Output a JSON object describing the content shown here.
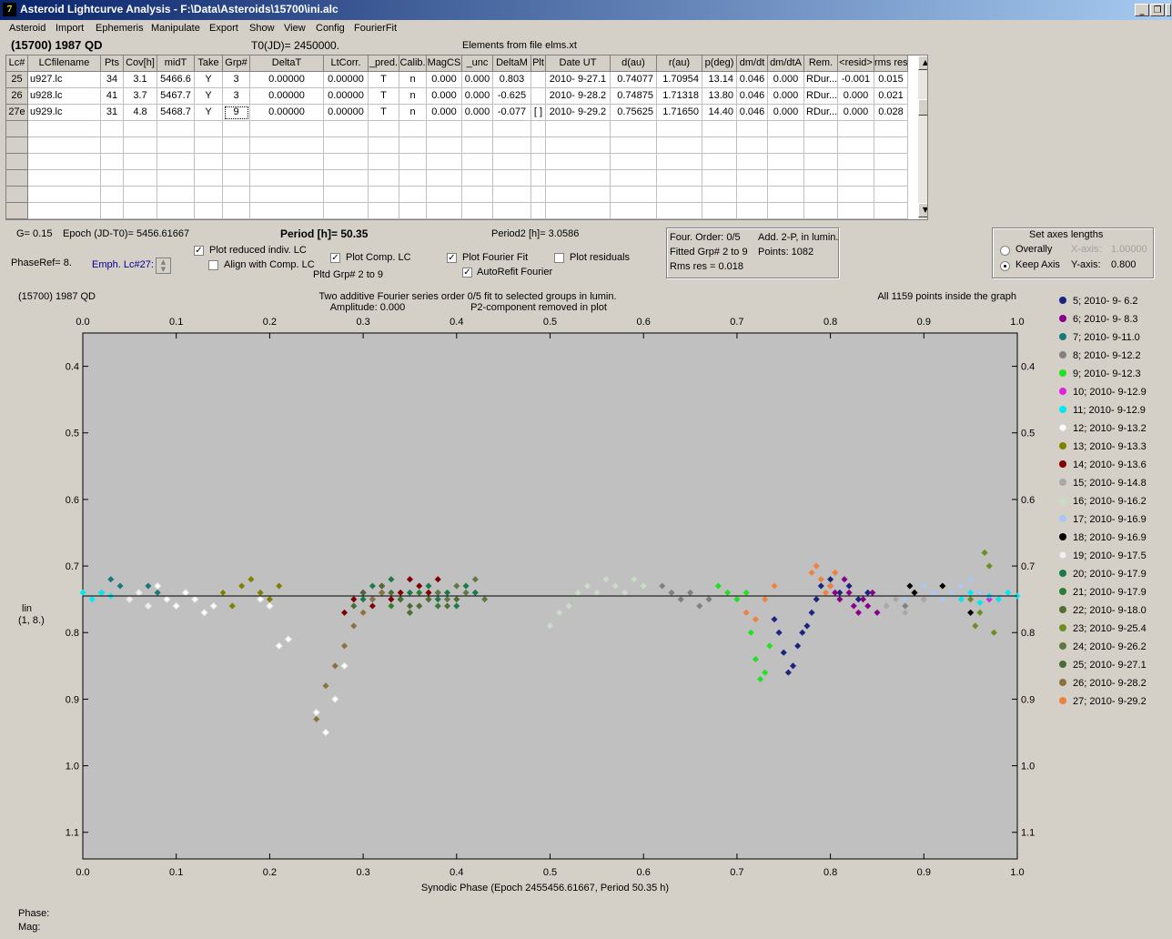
{
  "window": {
    "title": "Asteroid Lightcurve Analysis - F:\\Data\\Asteroids\\15700\\ini.alc",
    "icon": "app-icon"
  },
  "menu": [
    "Asteroid",
    "Import",
    "Ephemeris",
    "Manipulate",
    "Export",
    "Show",
    "View",
    "Config",
    "FourierFit"
  ],
  "info": {
    "object": "(15700) 1987 QD",
    "t0": "T0(JD)= 2450000.",
    "elements": "Elements from file elms.xt"
  },
  "table": {
    "headers": [
      "Lc#",
      "LCfilename",
      "Pts",
      "Cov[h]",
      "midT",
      "Take",
      "Grp#",
      "DeltaT",
      "LtCorr.",
      "_pred.",
      "Calib.",
      "MagCS",
      "_unc",
      "DeltaM",
      "Plt",
      "Date UT",
      "d(au)",
      "r(au)",
      "p(deg)",
      "dm/dt",
      "dm/dtA",
      "Rem.",
      "<resid>",
      "rms res"
    ],
    "rows": [
      [
        "25",
        "u927.lc",
        "34",
        "3.1",
        "5466.6",
        "Y",
        "3",
        "0.00000",
        "0.00000",
        "T",
        "n",
        "0.000",
        "0.000",
        "0.803",
        "",
        "2010- 9-27.1",
        "0.74077",
        "1.70954",
        "13.14",
        "0.046",
        "0.000",
        "RDur...",
        "-0.001",
        "0.015"
      ],
      [
        "26",
        "u928.lc",
        "41",
        "3.7",
        "5467.7",
        "Y",
        "3",
        "0.00000",
        "0.00000",
        "T",
        "n",
        "0.000",
        "0.000",
        "-0.625",
        "",
        "2010- 9-28.2",
        "0.74875",
        "1.71318",
        "13.80",
        "0.046",
        "0.000",
        "RDur...",
        "0.000",
        "0.021"
      ],
      [
        "27e",
        "u929.lc",
        "31",
        "4.8",
        "5468.7",
        "Y",
        "9",
        "0.00000",
        "0.00000",
        "T",
        "n",
        "0.000",
        "0.000",
        "-0.077",
        "[ ]",
        "2010- 9-29.2",
        "0.75625",
        "1.71650",
        "14.40",
        "0.046",
        "0.000",
        "RDur...",
        "0.000",
        "0.028"
      ]
    ],
    "empty_rows": 6
  },
  "controls": {
    "g": "G= 0.15",
    "epoch": "Epoch (JD-T0)= 5456.61667",
    "period": "Period [h]= 50.35",
    "period2": "Period2 [h]= 3.0586",
    "phaseref": "PhaseRef= 8.",
    "emph": "Emph. Lc#27:",
    "plot_reduced": "Plot reduced indiv. LC",
    "align": "Align with Comp. LC",
    "plot_comp": "Plot Comp. LC",
    "pltd_grp": "Pltd Grp#  2  to  9",
    "plot_fourier": "Plot Fourier Fit",
    "autorefit": "AutoRefit Fourier",
    "plot_residuals": "Plot residuals",
    "checked": {
      "plot_reduced": true,
      "align": false,
      "plot_comp": true,
      "plot_fourier": true,
      "autorefit": true,
      "plot_residuals": false
    }
  },
  "fourier_box": {
    "order": "Four. Order:  0/5",
    "add": "Add. 2-P, in lumin.",
    "fitted": "Fitted Grp# 2 to 9",
    "points": "Points: 1082",
    "rms": "Rms res     = 0.018"
  },
  "axes_box": {
    "title": "Set axes lengths",
    "overally": "Overally",
    "keep": "Keep Axis",
    "xaxis_label": "X-axis:",
    "xaxis_value": "1.00000",
    "yaxis_label": "Y-axis:",
    "yaxis_value": "0.800",
    "selected": "keep"
  },
  "plot": {
    "object": "(15700) 1987 QD",
    "subtitle1": "Two additive Fourier series order 0/5 fit to selected groups in lumin.",
    "subtitle2": "Amplitude: 0.000",
    "subtitle3": "P2-component removed in plot",
    "points_note": "All 1159 points inside the graph",
    "ylabel1": "lin",
    "ylabel2": "(1, 8.)",
    "xlabel": "Synodic Phase (Epoch 2455456.61667, Period 50.35 h)",
    "phase_label": "Phase:",
    "mag_label": "Mag:"
  },
  "chart_data": {
    "type": "scatter",
    "xlim": [
      0.0,
      1.0
    ],
    "ylim": [
      1.14,
      0.35
    ],
    "x_ticks": [
      "0.0",
      "0.1",
      "0.2",
      "0.3",
      "0.4",
      "0.5",
      "0.6",
      "0.7",
      "0.8",
      "0.9",
      "1.0"
    ],
    "y_ticks": [
      "0.4",
      "0.5",
      "0.6",
      "0.7",
      "0.8",
      "0.9",
      "1.0",
      "1.1"
    ],
    "fit_line_y": 0.745,
    "series": [
      {
        "name": "5; 2010- 9- 6.2",
        "color": "#1a237e",
        "x": [
          0.74,
          0.745,
          0.75,
          0.755,
          0.76,
          0.765,
          0.77,
          0.775,
          0.78,
          0.785,
          0.79,
          0.8,
          0.81,
          0.82,
          0.83,
          0.84
        ],
        "y": [
          0.78,
          0.8,
          0.83,
          0.86,
          0.85,
          0.82,
          0.8,
          0.79,
          0.77,
          0.75,
          0.73,
          0.72,
          0.74,
          0.73,
          0.75,
          0.74
        ]
      },
      {
        "name": "6; 2010- 9- 8.3",
        "color": "#8b008b",
        "x": [
          0.8,
          0.805,
          0.81,
          0.815,
          0.82,
          0.825,
          0.83,
          0.835,
          0.84,
          0.845,
          0.85
        ],
        "y": [
          0.73,
          0.74,
          0.75,
          0.72,
          0.74,
          0.76,
          0.77,
          0.75,
          0.76,
          0.74,
          0.77
        ]
      },
      {
        "name": "7; 2010- 9-11.0",
        "color": "#1a7a7a",
        "x": [
          0.02,
          0.03,
          0.04,
          0.05,
          0.06,
          0.07,
          0.08,
          0.09,
          0.1,
          0.11,
          0.12,
          0.13,
          0.14
        ],
        "y": [
          0.74,
          0.72,
          0.73,
          0.75,
          0.74,
          0.73,
          0.74,
          0.75,
          0.76,
          0.74,
          0.75,
          0.77,
          0.76
        ]
      },
      {
        "name": "8; 2010- 9-12.2",
        "color": "#808080",
        "x": [
          0.62,
          0.63,
          0.64,
          0.65,
          0.66,
          0.67,
          0.88,
          0.89,
          0.9
        ],
        "y": [
          0.73,
          0.74,
          0.75,
          0.74,
          0.76,
          0.75,
          0.76,
          0.74,
          0.75
        ]
      },
      {
        "name": "9; 2010- 9-12.3",
        "color": "#22e022",
        "x": [
          0.68,
          0.69,
          0.7,
          0.71,
          0.715,
          0.72,
          0.725,
          0.73,
          0.735
        ],
        "y": [
          0.73,
          0.74,
          0.75,
          0.74,
          0.8,
          0.84,
          0.87,
          0.86,
          0.82
        ]
      },
      {
        "name": "10; 2010- 9-12.9",
        "color": "#e020e0",
        "x": [
          0.96,
          0.97
        ],
        "y": [
          0.74,
          0.75
        ]
      },
      {
        "name": "11; 2010- 9-12.9",
        "color": "#00e8f0",
        "x": [
          0.0,
          0.01,
          0.02,
          0.03,
          0.94,
          0.95,
          0.96,
          0.97,
          0.98,
          0.99,
          1.0
        ],
        "y": [
          0.74,
          0.75,
          0.74,
          0.745,
          0.75,
          0.74,
          0.755,
          0.745,
          0.75,
          0.74,
          0.745
        ]
      },
      {
        "name": "12; 2010- 9-13.2",
        "color": "#ffffff",
        "x": [
          0.08,
          0.09,
          0.1,
          0.11,
          0.12,
          0.13,
          0.14,
          0.15,
          0.19,
          0.2,
          0.21,
          0.22,
          0.25,
          0.26,
          0.27,
          0.28
        ],
        "y": [
          0.73,
          0.75,
          0.76,
          0.74,
          0.75,
          0.77,
          0.76,
          0.74,
          0.75,
          0.76,
          0.82,
          0.81,
          0.92,
          0.95,
          0.9,
          0.85
        ]
      },
      {
        "name": "13; 2010- 9-13.3",
        "color": "#808000",
        "x": [
          0.15,
          0.16,
          0.17,
          0.18,
          0.19,
          0.2,
          0.21
        ],
        "y": [
          0.74,
          0.76,
          0.73,
          0.72,
          0.74,
          0.75,
          0.73
        ]
      },
      {
        "name": "14; 2010- 9-13.6",
        "color": "#800000",
        "x": [
          0.28,
          0.29,
          0.3,
          0.31,
          0.32,
          0.33,
          0.34,
          0.35,
          0.36,
          0.37,
          0.38
        ],
        "y": [
          0.77,
          0.75,
          0.74,
          0.76,
          0.73,
          0.75,
          0.74,
          0.72,
          0.73,
          0.74,
          0.72
        ]
      },
      {
        "name": "15; 2010- 9-14.8",
        "color": "#a8a8a8",
        "x": [
          0.86,
          0.87,
          0.88,
          0.89,
          0.9
        ],
        "y": [
          0.76,
          0.75,
          0.77,
          0.74,
          0.75
        ]
      },
      {
        "name": "16; 2010- 9-16.2",
        "color": "#c8dcc8",
        "x": [
          0.5,
          0.51,
          0.52,
          0.53,
          0.54,
          0.55,
          0.56,
          0.57,
          0.58,
          0.59,
          0.6
        ],
        "y": [
          0.79,
          0.77,
          0.76,
          0.74,
          0.73,
          0.74,
          0.72,
          0.73,
          0.74,
          0.72,
          0.73
        ]
      },
      {
        "name": "17; 2010- 9-16.9",
        "color": "#a8c8f0",
        "x": [
          0.88,
          0.89,
          0.9,
          0.91,
          0.92,
          0.93,
          0.94,
          0.95,
          0.96
        ],
        "y": [
          0.75,
          0.74,
          0.73,
          0.74,
          0.75,
          0.74,
          0.73,
          0.72,
          0.74
        ]
      },
      {
        "name": "18; 2010- 9-16.9",
        "color": "#000000",
        "x": [
          0.885,
          0.89,
          0.92,
          0.95
        ],
        "y": [
          0.73,
          0.74,
          0.73,
          0.77
        ]
      },
      {
        "name": "19; 2010- 9-17.5",
        "color": "#f0f0f0",
        "x": [
          0.05,
          0.06,
          0.07
        ],
        "y": [
          0.75,
          0.74,
          0.76
        ]
      },
      {
        "name": "20; 2010- 9-17.9",
        "color": "#1a7a4a",
        "x": [
          0.3,
          0.31,
          0.32,
          0.33,
          0.34,
          0.35,
          0.36,
          0.37,
          0.38,
          0.39,
          0.4,
          0.41,
          0.42
        ],
        "y": [
          0.75,
          0.73,
          0.74,
          0.72,
          0.75,
          0.74,
          0.76,
          0.73,
          0.75,
          0.74,
          0.76,
          0.73,
          0.74
        ]
      },
      {
        "name": "21; 2010- 9-17.9",
        "color": "#2e7d32",
        "x": [
          0.32,
          0.33,
          0.34,
          0.35,
          0.36,
          0.37,
          0.38
        ],
        "y": [
          0.74,
          0.76,
          0.75,
          0.77,
          0.74,
          0.75,
          0.76
        ]
      },
      {
        "name": "22; 2010- 9-18.0",
        "color": "#556b2f",
        "x": [
          0.34,
          0.35,
          0.36,
          0.37,
          0.38,
          0.39,
          0.4
        ],
        "y": [
          0.75,
          0.77,
          0.76,
          0.75,
          0.74,
          0.76,
          0.75
        ]
      },
      {
        "name": "23; 2010- 9-25.4",
        "color": "#6b8e23",
        "x": [
          0.95,
          0.955,
          0.96,
          0.965,
          0.97,
          0.975
        ],
        "y": [
          0.75,
          0.79,
          0.77,
          0.68,
          0.7,
          0.8
        ]
      },
      {
        "name": "24; 2010- 9-26.2",
        "color": "#607840",
        "x": [
          0.38,
          0.39,
          0.4,
          0.41,
          0.42,
          0.43
        ],
        "y": [
          0.74,
          0.75,
          0.73,
          0.74,
          0.72,
          0.75
        ]
      },
      {
        "name": "25; 2010- 9-27.1",
        "color": "#4a6a3a",
        "x": [
          0.29,
          0.3,
          0.31,
          0.32,
          0.33,
          0.34,
          0.35
        ],
        "y": [
          0.76,
          0.74,
          0.75,
          0.73,
          0.74,
          0.75,
          0.76
        ]
      },
      {
        "name": "26; 2010- 9-28.2",
        "color": "#8b7340",
        "x": [
          0.25,
          0.26,
          0.27,
          0.28,
          0.29,
          0.3,
          0.31,
          0.32
        ],
        "y": [
          0.93,
          0.88,
          0.85,
          0.82,
          0.79,
          0.77,
          0.75,
          0.74
        ]
      },
      {
        "name": "27; 2010- 9-29.2",
        "color": "#f08040",
        "x": [
          0.71,
          0.72,
          0.73,
          0.74,
          0.78,
          0.785,
          0.79,
          0.795,
          0.8,
          0.805
        ],
        "y": [
          0.77,
          0.78,
          0.75,
          0.73,
          0.71,
          0.7,
          0.72,
          0.74,
          0.73,
          0.71
        ]
      }
    ]
  }
}
